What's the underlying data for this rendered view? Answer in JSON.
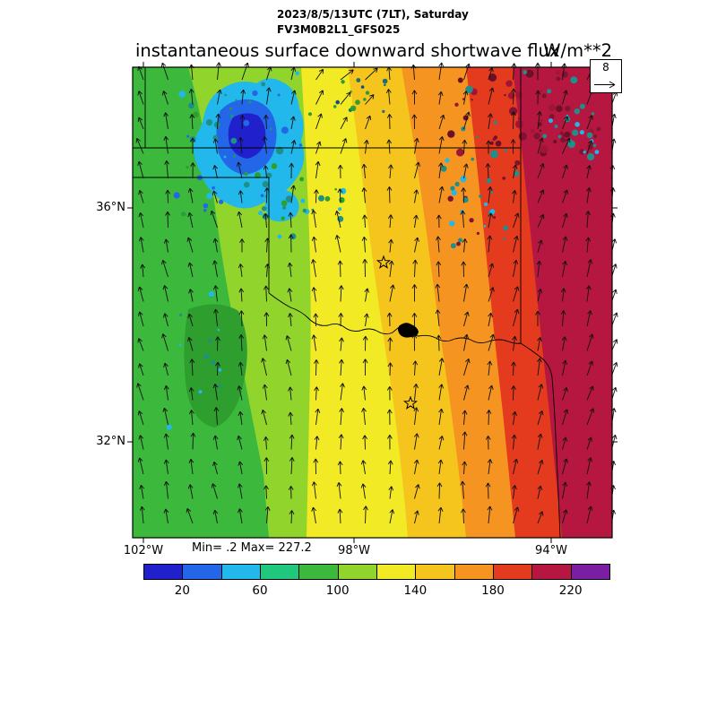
{
  "header": {
    "datetime_line": "2023/8/5/13UTC (7LT), Saturday",
    "model_line": "FV3M0B2L1_GFS025"
  },
  "title": {
    "text": "instantaneous surface downward shortwave flux",
    "units": "W/m**2"
  },
  "ref_vector": {
    "value": "8"
  },
  "stats": {
    "text": "Min= .2 Max= 227.2"
  },
  "axes": {
    "lat_labels": [
      {
        "text": "36°N"
      },
      {
        "text": "32°N"
      }
    ],
    "lon_labels": [
      {
        "text": "102°W"
      },
      {
        "text": "98°W"
      },
      {
        "text": "94°W"
      }
    ]
  },
  "chart_data": {
    "type": "heatmap",
    "title": "instantaneous surface downward shortwave flux",
    "units": "W/m**2",
    "valid_time": "2023/8/5/13UTC (7LT), Saturday",
    "model_run": "FV3M0B2L1_GFS025",
    "stat_min": 0.2,
    "stat_max": 227.2,
    "colorbar": {
      "levels": [
        0,
        20,
        40,
        60,
        80,
        100,
        120,
        140,
        160,
        180,
        200,
        220,
        240
      ],
      "tick_labels": [
        "20",
        "60",
        "100",
        "140",
        "180",
        "220"
      ],
      "colors": [
        "#2020cd",
        "#2367e8",
        "#22b8eb",
        "#1fc87d",
        "#3cb83c",
        "#90d42c",
        "#f2ea25",
        "#f5c51d",
        "#f59420",
        "#e43a1e",
        "#b51740",
        "#7a1fa2"
      ]
    },
    "axes": {
      "lon_ticks": [
        "102°W",
        "98°W",
        "94°W"
      ],
      "lat_ticks": [
        "36°N",
        "32°N"
      ],
      "legend_position": "bottom"
    },
    "wind": {
      "reference_value": 8,
      "description": "surface wind vectors, mostly southerly (arrows pointing north), tilting north-northeasterly toward the east and cyclonic near the northwest cloud area"
    },
    "approx_field_grid": {
      "lon": [
        -102,
        -100.7,
        -99.3,
        -98,
        -96.7,
        -95.3,
        -94
      ],
      "lat": [
        37.5,
        36.2,
        35,
        33.7,
        32.4,
        31
      ],
      "values_wm2": [
        [
          90,
          30,
          110,
          150,
          180,
          210,
          215
        ],
        [
          90,
          50,
          120,
          155,
          185,
          205,
          215
        ],
        [
          85,
          100,
          120,
          155,
          175,
          200,
          210
        ],
        [
          85,
          105,
          125,
          150,
          175,
          195,
          210
        ],
        [
          80,
          100,
          120,
          145,
          170,
          190,
          205
        ],
        [
          75,
          95,
          115,
          140,
          165,
          185,
          200
        ]
      ]
    },
    "features": [
      "low-flux cloudy patch (roughly 5-60 W/m**2, blue/cyan) over the Oklahoma-Texas panhandle region in the northwest",
      "scattered dark low-flux cloud specks over northeast Oklahoma",
      "flux increases steadily west to east from ~80 to ~220 W/m**2 in tilted bands",
      "state borders of Oklahoma/Texas/Kansas/Arkansas with Red River and two hollow star city markers"
    ]
  }
}
